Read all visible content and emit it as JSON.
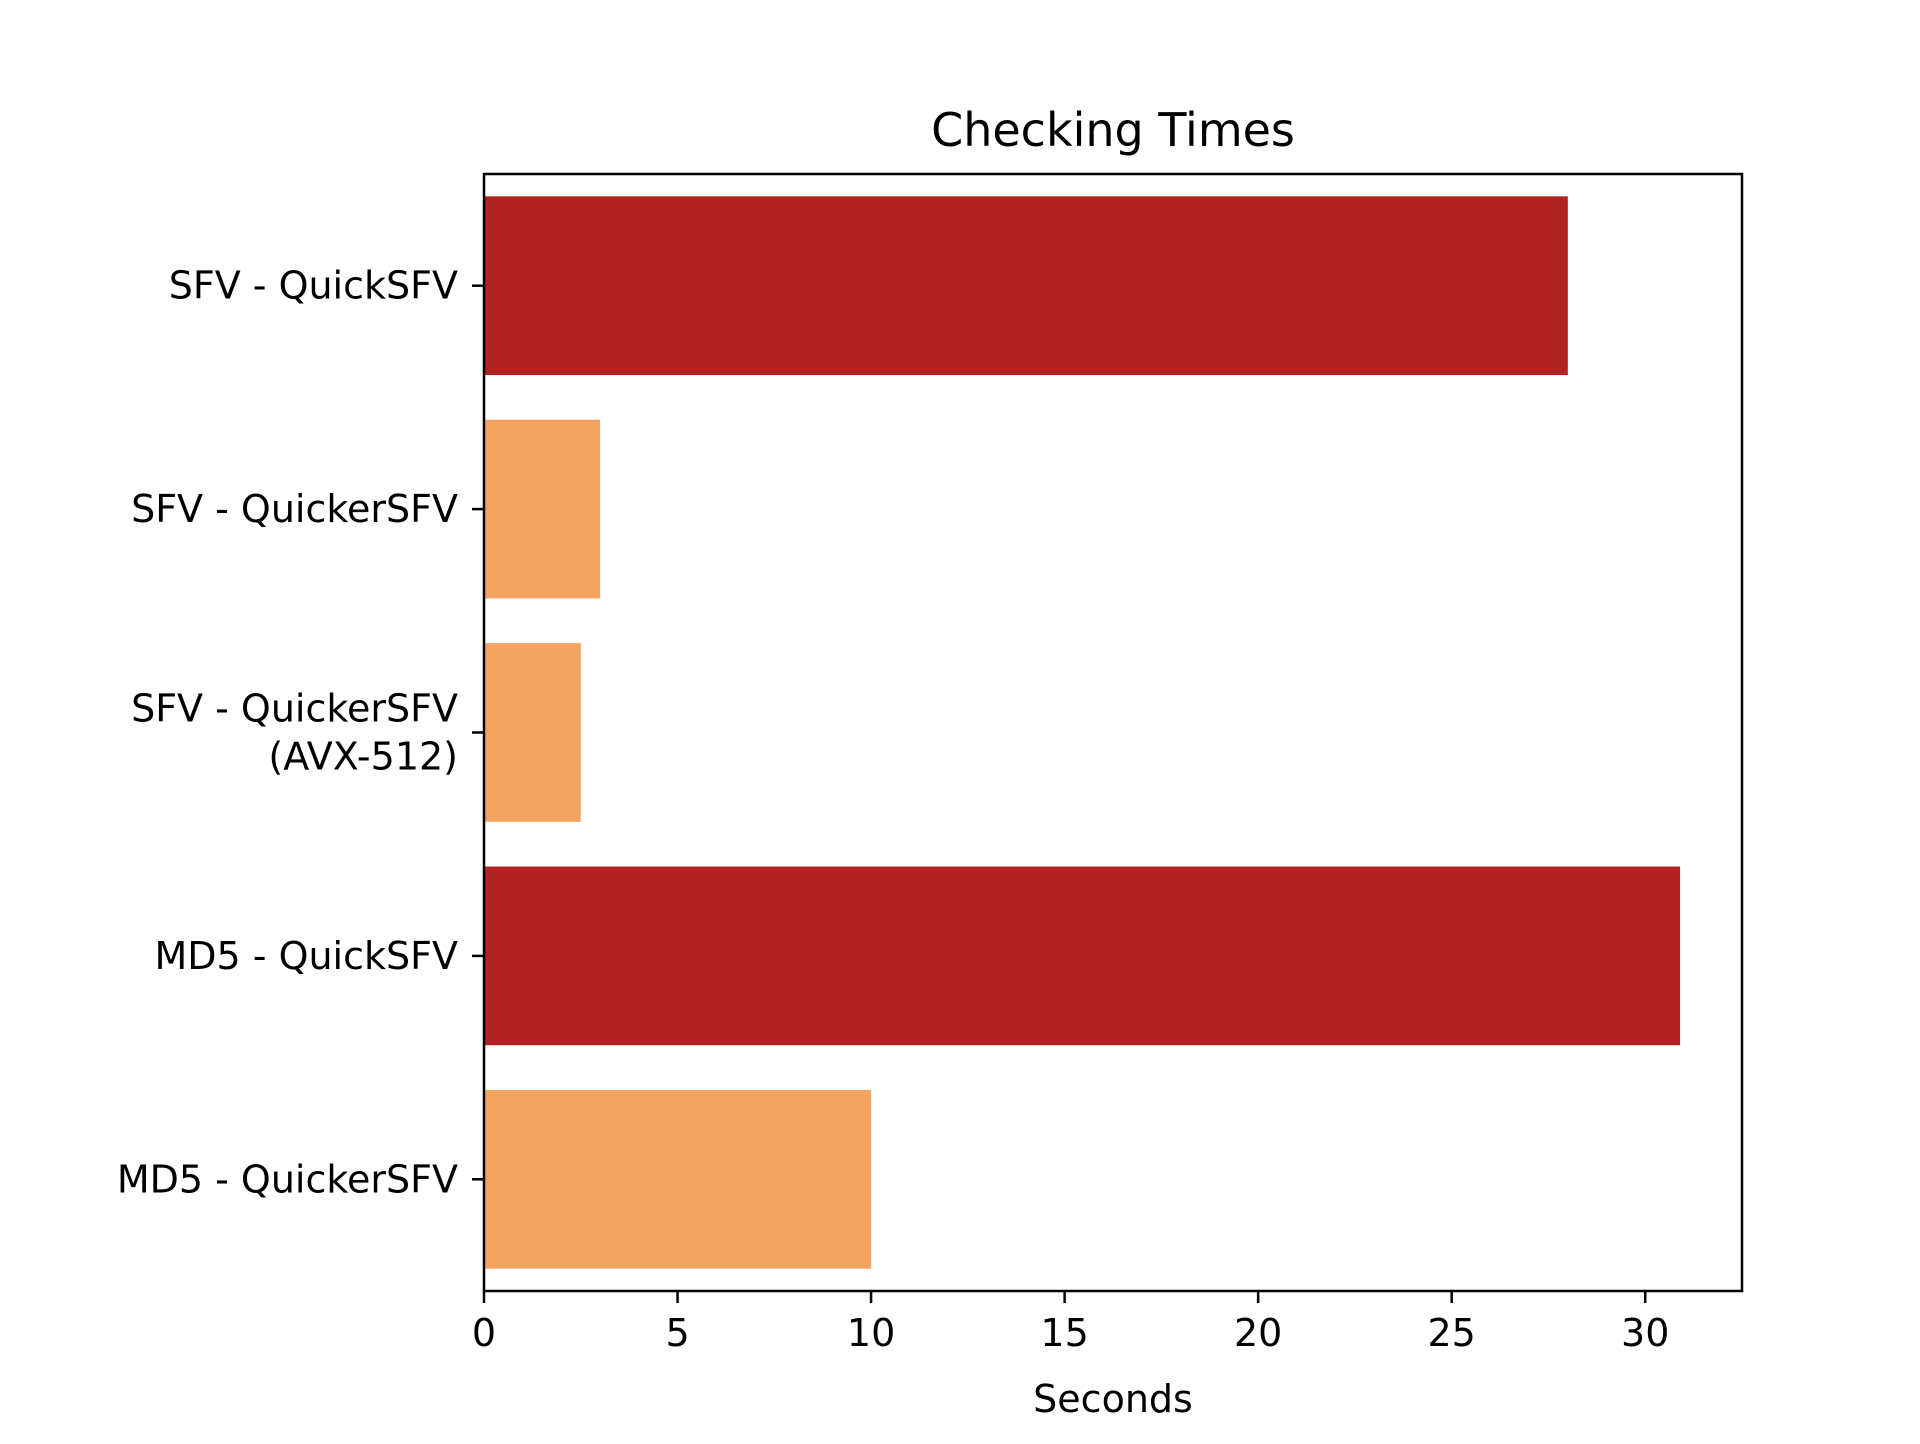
{
  "chart_data": {
    "type": "bar",
    "orientation": "horizontal",
    "title": "Checking Times",
    "xlabel": "Seconds",
    "ylabel": "",
    "xlim": [
      0,
      32.5
    ],
    "xticks": [
      0,
      5,
      10,
      15,
      20,
      25,
      30
    ],
    "grid": false,
    "categories": [
      [
        "SFV - QuickSFV"
      ],
      [
        "SFV - QuickerSFV"
      ],
      [
        "SFV - QuickerSFV",
        "(AVX-512)"
      ],
      [
        "MD5 - QuickSFV"
      ],
      [
        "MD5 - QuickerSFV"
      ]
    ],
    "values": [
      28.0,
      3.0,
      2.5,
      30.9,
      10.0
    ],
    "colors": [
      "#b22222",
      "#f4a460",
      "#f4a460",
      "#b22222",
      "#f4a460"
    ]
  }
}
